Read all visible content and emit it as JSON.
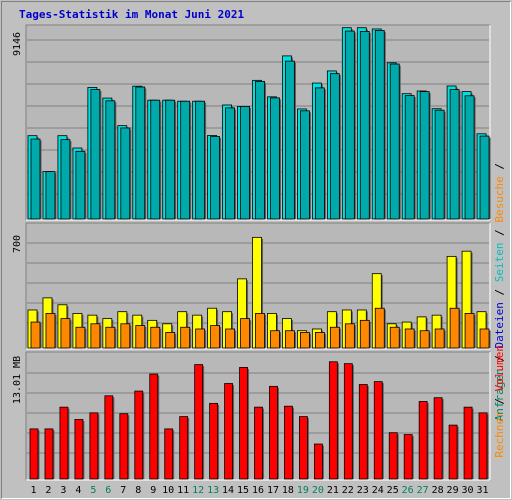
{
  "title": "Tages-Statistik im Monat Juni 2021",
  "colors": {
    "background": "#c0c0c0",
    "title": "#0000cc",
    "anfragen": "#00e0e0",
    "dateien": "#00aaaa",
    "seiten": "#ffff00",
    "besuche": "#ff8800",
    "rechner": "#ff0000",
    "weekday_tick": "#000000",
    "weekend_tick": "#008060"
  },
  "legend_right": {
    "top": [
      {
        "text": "Anfragen",
        "color": "#008060"
      },
      {
        "text": " / ",
        "color": "#000000"
      },
      {
        "text": "Dateien",
        "color": "#0000cc"
      },
      {
        "text": " / ",
        "color": "#000000"
      },
      {
        "text": "Seiten",
        "color": "#00c0c0"
      },
      {
        "text": " / ",
        "color": "#000000"
      },
      {
        "text": "Besuche",
        "color": "#ff8800"
      },
      {
        "text": " / ",
        "color": "#000000"
      }
    ],
    "bottom": [
      {
        "text": "Rechner",
        "color": "#ff8800"
      },
      {
        "text": " / ",
        "color": "#000000"
      },
      {
        "text": "Volumen",
        "color": "#ff0000"
      }
    ]
  },
  "chart_data": [
    {
      "type": "bar",
      "panel": "hits",
      "ymax_label": "9146",
      "ylim": [
        0,
        9146
      ],
      "grid": true,
      "categories": [
        "1",
        "2",
        "3",
        "4",
        "5",
        "6",
        "7",
        "8",
        "9",
        "10",
        "11",
        "12",
        "13",
        "14",
        "15",
        "16",
        "17",
        "18",
        "19",
        "20",
        "21",
        "22",
        "23",
        "24",
        "25",
        "26",
        "27",
        "28",
        "29",
        "30",
        "31"
      ],
      "weekend_days": [
        "5",
        "6",
        "12",
        "13",
        "19",
        "20",
        "26",
        "27"
      ],
      "series": [
        {
          "name": "Anfragen",
          "values": [
            3990,
            2270,
            3990,
            3400,
            6300,
            5790,
            4470,
            6360,
            5690,
            5690,
            5640,
            5640,
            4000,
            5460,
            5390,
            6640,
            5850,
            7810,
            5270,
            6510,
            7090,
            9160,
            9160,
            9100,
            7480,
            6000,
            6130,
            5280,
            6370,
            6100,
            4080
          ]
        },
        {
          "name": "Dateien",
          "values": [
            3830,
            2270,
            3800,
            3240,
            6200,
            5660,
            4360,
            6320,
            5690,
            5690,
            5640,
            5640,
            3950,
            5320,
            5390,
            6590,
            5800,
            7560,
            5180,
            6280,
            6960,
            9000,
            8980,
            9030,
            7420,
            5910,
            6100,
            5210,
            6200,
            5900,
            3970
          ]
        }
      ]
    },
    {
      "type": "bar",
      "panel": "visits",
      "ymax_label": "700",
      "ylim": [
        0,
        700
      ],
      "grid": true,
      "categories": [
        "1",
        "2",
        "3",
        "4",
        "5",
        "6",
        "7",
        "8",
        "9",
        "10",
        "11",
        "12",
        "13",
        "14",
        "15",
        "16",
        "17",
        "18",
        "19",
        "20",
        "21",
        "22",
        "23",
        "24",
        "25",
        "26",
        "27",
        "28",
        "29",
        "30",
        "31"
      ],
      "series": [
        {
          "name": "Seiten",
          "values": [
            220,
            290,
            250,
            200,
            190,
            170,
            210,
            190,
            160,
            140,
            210,
            190,
            230,
            210,
            400,
            640,
            200,
            170,
            100,
            110,
            210,
            220,
            220,
            430,
            140,
            150,
            180,
            190,
            530,
            560,
            210
          ]
        },
        {
          "name": "Besuche",
          "values": [
            150,
            200,
            170,
            120,
            140,
            120,
            140,
            130,
            120,
            90,
            120,
            110,
            130,
            110,
            170,
            200,
            100,
            100,
            90,
            90,
            120,
            140,
            160,
            230,
            120,
            110,
            100,
            110,
            230,
            200,
            110
          ]
        }
      ]
    },
    {
      "type": "bar",
      "panel": "volume",
      "ymax_label": "13.01 MB",
      "ylim": [
        0,
        13.01
      ],
      "grid": true,
      "categories": [
        "1",
        "2",
        "3",
        "4",
        "5",
        "6",
        "7",
        "8",
        "9",
        "10",
        "11",
        "12",
        "13",
        "14",
        "15",
        "16",
        "17",
        "18",
        "19",
        "20",
        "21",
        "22",
        "23",
        "24",
        "25",
        "26",
        "27",
        "28",
        "29",
        "30",
        "31"
      ],
      "series": [
        {
          "name": "Volumen",
          "values": [
            5.3,
            5.3,
            7.6,
            6.3,
            7.0,
            8.8,
            6.9,
            9.3,
            11.1,
            5.3,
            6.6,
            12.1,
            8.0,
            10.1,
            11.8,
            7.6,
            9.8,
            7.7,
            6.6,
            3.7,
            12.4,
            12.2,
            10.0,
            10.3,
            4.9,
            4.7,
            8.2,
            8.6,
            5.7,
            7.6,
            7.0
          ]
        }
      ]
    }
  ]
}
